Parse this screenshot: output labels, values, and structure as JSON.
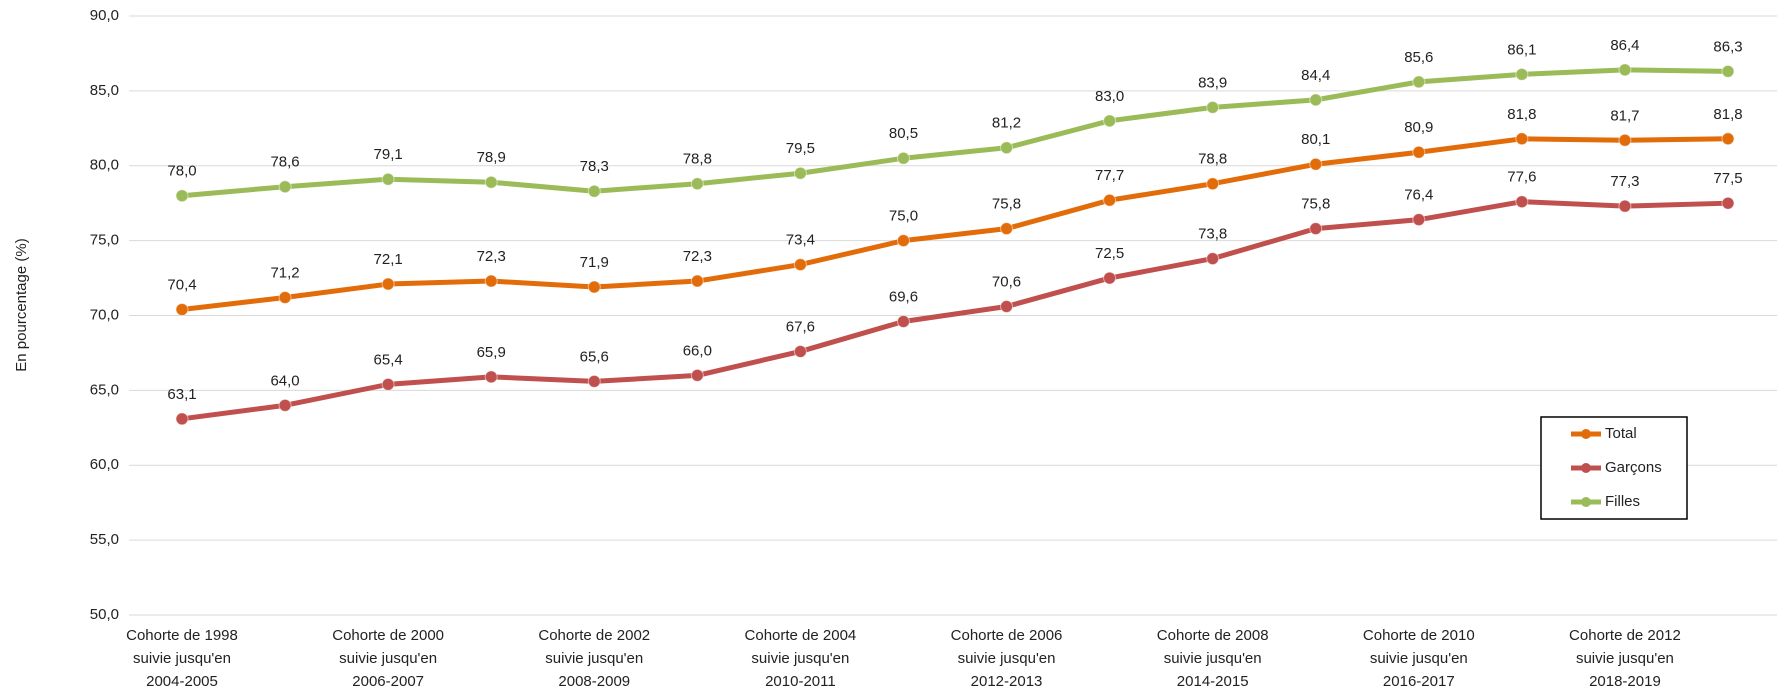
{
  "chart_data": {
    "type": "line",
    "y_label": "En pourcentage (%)",
    "categories": [
      [
        "Cohorte de 1998",
        "suivie jusqu'en",
        "2004-2005"
      ],
      null,
      [
        "Cohorte de 2000",
        "suivie jusqu'en",
        "2006-2007"
      ],
      null,
      [
        "Cohorte de 2002",
        "suivie jusqu'en",
        "2008-2009"
      ],
      null,
      [
        "Cohorte de 2004",
        "suivie jusqu'en",
        "2010-2011"
      ],
      null,
      [
        "Cohorte de 2006",
        "suivie jusqu'en",
        "2012-2013"
      ],
      null,
      [
        "Cohorte de 2008",
        "suivie jusqu'en",
        "2014-2015"
      ],
      null,
      [
        "Cohorte de 2010",
        "suivie jusqu'en",
        "2016-2017"
      ],
      null,
      [
        "Cohorte de 2012",
        "suivie jusqu'en",
        "2018-2019"
      ],
      null
    ],
    "series": [
      {
        "name": "Total",
        "color": "#e36c0a",
        "values": [
          70.4,
          71.2,
          72.1,
          72.3,
          71.9,
          72.3,
          73.4,
          75.0,
          75.8,
          77.7,
          78.8,
          80.1,
          80.9,
          81.8,
          81.7,
          81.8
        ],
        "value_labels": [
          "70,4",
          "71,2",
          "72,1",
          "72,3",
          "71,9",
          "72,3",
          "73,4",
          "75,0",
          "75,8",
          "77,7",
          "78,8",
          "80,1",
          "80,9",
          "81,8",
          "81,7",
          "81,8"
        ]
      },
      {
        "name": "Garçons",
        "color": "#c0504d",
        "values": [
          63.1,
          64.0,
          65.4,
          65.9,
          65.6,
          66.0,
          67.6,
          69.6,
          70.6,
          72.5,
          73.8,
          75.8,
          76.4,
          77.6,
          77.3,
          77.5
        ],
        "value_labels": [
          "63,1",
          "64,0",
          "65,4",
          "65,9",
          "65,6",
          "66,0",
          "67,6",
          "69,6",
          "70,6",
          "72,5",
          "73,8",
          "75,8",
          "76,4",
          "77,6",
          "77,3",
          "77,5"
        ]
      },
      {
        "name": "Filles",
        "color": "#9bbb59",
        "values": [
          78.0,
          78.6,
          79.1,
          78.9,
          78.3,
          78.8,
          79.5,
          80.5,
          81.2,
          83.0,
          83.9,
          84.4,
          85.6,
          86.1,
          86.4,
          86.3
        ],
        "value_labels": [
          "78,0",
          "78,6",
          "79,1",
          "78,9",
          "78,3",
          "78,8",
          "79,5",
          "80,5",
          "81,2",
          "83,0",
          "83,9",
          "84,4",
          "85,6",
          "86,1",
          "86,4",
          "86,3"
        ]
      }
    ],
    "ylim": [
      50,
      90
    ],
    "yticks": [
      {
        "value": 50,
        "label": "50,0"
      },
      {
        "value": 55,
        "label": "55,0"
      },
      {
        "value": 60,
        "label": "60,0"
      },
      {
        "value": 65,
        "label": "65,0"
      },
      {
        "value": 70,
        "label": "70,0"
      },
      {
        "value": 75,
        "label": "75,0"
      },
      {
        "value": 80,
        "label": "80,0"
      },
      {
        "value": 85,
        "label": "85,0"
      },
      {
        "value": 90,
        "label": "90,0"
      }
    ],
    "grid": true,
    "legend": "right"
  }
}
